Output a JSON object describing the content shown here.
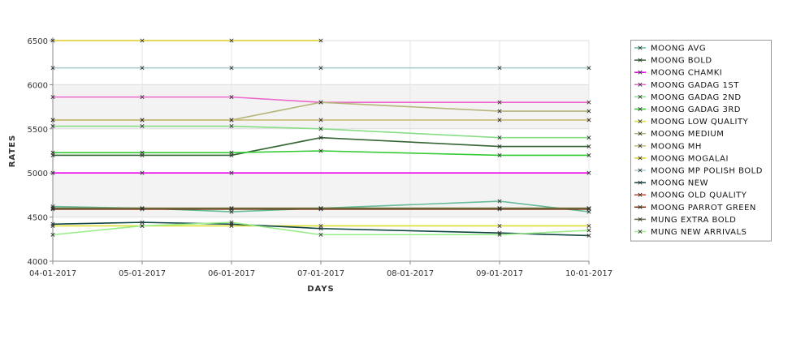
{
  "chart_data": {
    "type": "line",
    "title": "",
    "xlabel": "DAYS",
    "ylabel": "RATES",
    "x": [
      "04-01-2017",
      "05-01-2017",
      "06-01-2017",
      "07-01-2017",
      "08-01-2017",
      "09-01-2017",
      "10-01-2017"
    ],
    "ylim": [
      4000,
      6500
    ],
    "yticks": [
      4000,
      4500,
      5000,
      5500,
      6000,
      6500
    ],
    "grid": true,
    "legend_position": "right",
    "series": [
      {
        "name": "MOONG AVG",
        "color": "#66bb99",
        "values": [
          4620,
          4600,
          4560,
          4600,
          null,
          4680,
          4560
        ]
      },
      {
        "name": "MOONG BOLD",
        "color": "#336633",
        "values": [
          5200,
          5200,
          5200,
          5400,
          null,
          5300,
          5300
        ]
      },
      {
        "name": "MOONG CHAMKI",
        "color": "#ee00ee",
        "values": [
          5000,
          5000,
          5000,
          null,
          null,
          null,
          5000
        ]
      },
      {
        "name": "MOONG GADAG 1ST",
        "color": "#ee66cc",
        "values": [
          5860,
          5860,
          5860,
          5800,
          null,
          5800,
          5800
        ]
      },
      {
        "name": "MOONG GADAG 2ND",
        "color": "#88dd88",
        "values": [
          5530,
          5530,
          5530,
          5500,
          null,
          5400,
          5400
        ]
      },
      {
        "name": "MOONG GADAG 3RD",
        "color": "#33cc33",
        "values": [
          5230,
          5230,
          5230,
          5250,
          null,
          5200,
          5200
        ]
      },
      {
        "name": "MOONG LOW QUALITY",
        "color": "#dddd33",
        "values": [
          4400,
          4400,
          4400,
          4400,
          null,
          4400,
          4400
        ]
      },
      {
        "name": "MOONG MEDIUM",
        "color": "#b5b57a",
        "values": [
          5600,
          5600,
          5600,
          5800,
          null,
          5700,
          5700
        ]
      },
      {
        "name": "MOONG MH",
        "color": "#ccbb77",
        "values": [
          5600,
          5600,
          5600,
          5600,
          null,
          5600,
          5600
        ]
      },
      {
        "name": "MOONG MOGALAI",
        "color": "#ddcc22",
        "values": [
          6500,
          6500,
          6500,
          6500,
          null,
          null,
          null
        ]
      },
      {
        "name": "MOONG MP POLISH BOLD",
        "color": "#aacccc",
        "values": [
          6190,
          6190,
          6190,
          6190,
          null,
          6190,
          6190
        ]
      },
      {
        "name": "MOONG NEW",
        "color": "#114444",
        "values": [
          4420,
          4440,
          4420,
          4370,
          null,
          4320,
          4290
        ]
      },
      {
        "name": "MOONG OLD QUALITY",
        "color": "#cc4422",
        "values": [
          4600,
          4600,
          4600,
          4600,
          null,
          4600,
          4600
        ]
      },
      {
        "name": "MOONG PARROT GREEN",
        "color": "#7a2a0a",
        "values": [
          4590,
          4590,
          4590,
          4590,
          null,
          4590,
          4590
        ]
      },
      {
        "name": "MUNG EXTRA BOLD",
        "color": "#667744",
        "values": [
          4600,
          4600,
          4600,
          4600,
          null,
          4600,
          4600
        ]
      },
      {
        "name": "MUNG NEW ARRIVALS",
        "color": "#99ee88",
        "values": [
          4300,
          4400,
          4440,
          4300,
          null,
          4300,
          4350
        ]
      }
    ]
  }
}
